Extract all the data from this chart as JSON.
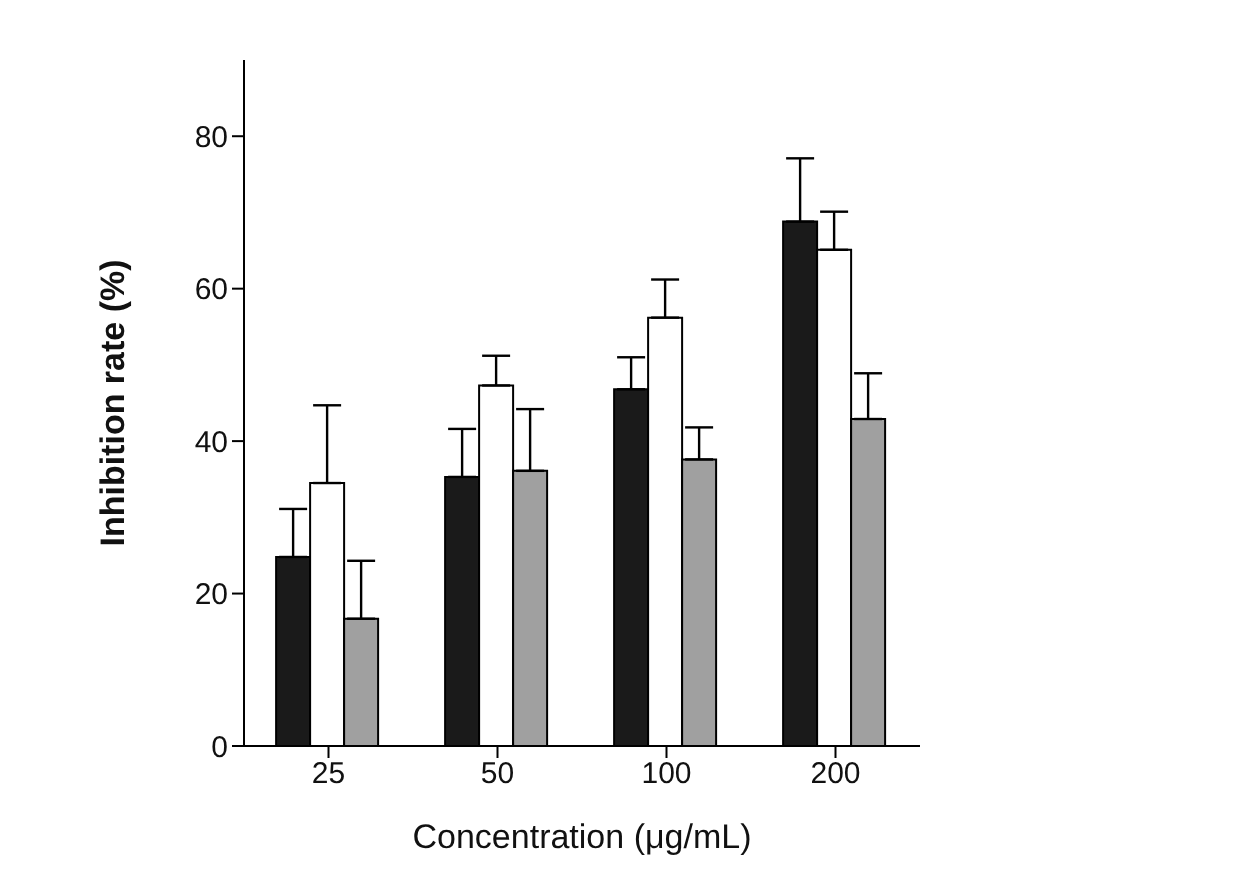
{
  "chart_data": {
    "type": "bar",
    "xlabel": "Concentration (μg/mL)",
    "ylabel": "Inhibition rate (%)",
    "categories": [
      "25",
      "50",
      "100",
      "200"
    ],
    "series": [
      {
        "color": "#1a1a1a",
        "values": [
          24.8,
          35.3,
          46.8,
          68.8
        ],
        "errors": [
          [
            24.8,
            31.1
          ],
          [
            35.3,
            41.6
          ],
          [
            46.8,
            51.0
          ],
          [
            68.8,
            77.1
          ]
        ]
      },
      {
        "color": "#ffffff",
        "values": [
          34.5,
          47.3,
          56.2,
          65.1
        ],
        "errors": [
          [
            34.5,
            44.7
          ],
          [
            47.3,
            51.2
          ],
          [
            56.2,
            61.2
          ],
          [
            65.1,
            70.1
          ]
        ]
      },
      {
        "color": "#a0a0a0",
        "values": [
          16.7,
          36.1,
          37.6,
          42.9
        ],
        "errors": [
          [
            16.7,
            24.3
          ],
          [
            36.1,
            44.2
          ],
          [
            37.6,
            41.8
          ],
          [
            42.9,
            48.9
          ]
        ]
      }
    ],
    "ylim": [
      0,
      90
    ],
    "yticks": [
      0,
      20,
      40,
      60,
      80
    ],
    "grid": false,
    "legend": false
  }
}
